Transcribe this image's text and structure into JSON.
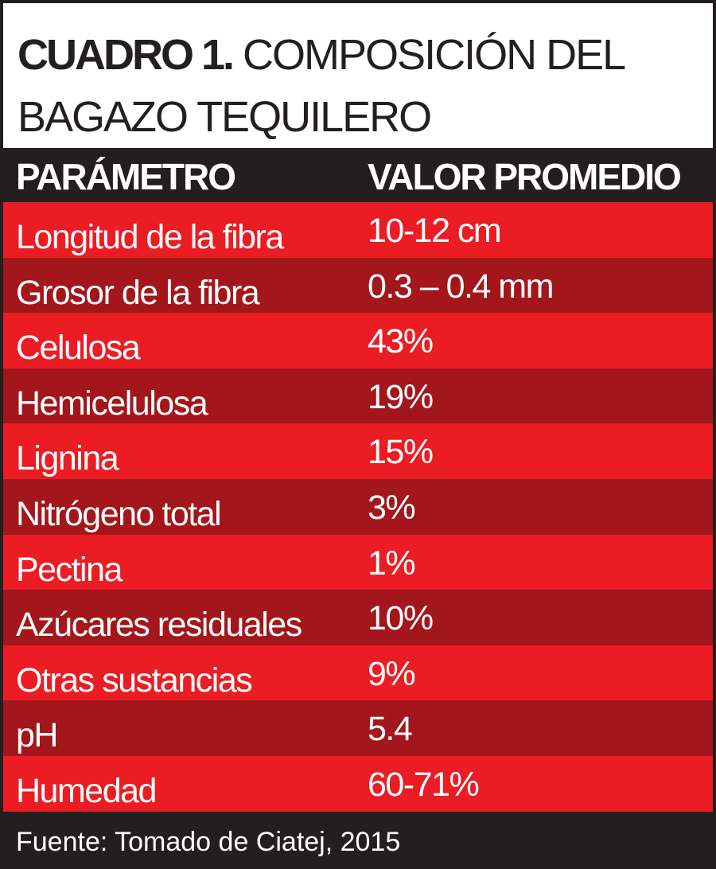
{
  "title": {
    "bold": "CUADRO 1.",
    "line1_rest": "COMPOSICIÓN DEL",
    "line2": "BAGAZO TEQUILERO"
  },
  "header": {
    "col1": "PARÁMETRO",
    "col2": "VALOR PROMEDIO"
  },
  "rows": [
    {
      "param": "Longitud de la fibra",
      "value": "10-12 cm"
    },
    {
      "param": "Grosor de la fibra",
      "value": "0.3 – 0.4 mm"
    },
    {
      "param": "Celulosa",
      "value": "43%"
    },
    {
      "param": "Hemicelulosa",
      "value": "19%"
    },
    {
      "param": "Lignina",
      "value": "15%"
    },
    {
      "param": "Nitrógeno total",
      "value": "3%"
    },
    {
      "param": "Pectina",
      "value": "1%"
    },
    {
      "param": "Azúcares residuales",
      "value": "10%"
    },
    {
      "param": "Otras sustancias",
      "value": "9%"
    },
    {
      "param": "pH",
      "value": "5.4"
    },
    {
      "param": "Humedad",
      "value": "60-71%"
    }
  ],
  "footer": "Fuente: Tomado de Ciatej, 2015",
  "colors": {
    "dark": "#231f20",
    "red_light": "#ec1c24",
    "red_dark": "#a3161b",
    "white": "#ffffff"
  }
}
